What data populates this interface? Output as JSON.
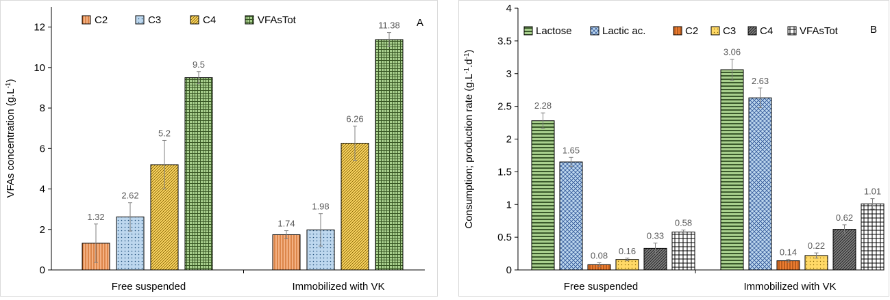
{
  "chart_data": [
    {
      "type": "bar",
      "panel_label": "A",
      "categories": [
        "Free suspended",
        "Immobilized with VK"
      ],
      "ylabel": "VFAs concentration (g.L",
      "ylabel_sup": "-1",
      "ylabel_end": ")",
      "ylim": [
        0,
        13
      ],
      "yticks": [
        "0",
        "2",
        "4",
        "6",
        "8",
        "10",
        "12"
      ],
      "legend_position": "top",
      "series": [
        {
          "name": "C2",
          "values": [
            1.32,
            1.74
          ],
          "labels": [
            "1.32",
            "1.74"
          ],
          "errors": [
            0.95,
            0.2
          ],
          "color": "#f4b183",
          "pattern": "vlines"
        },
        {
          "name": "C3",
          "values": [
            2.62,
            1.98
          ],
          "labels": [
            "2.62",
            "1.98"
          ],
          "errors": [
            0.7,
            0.8
          ],
          "color": "#bdd7ee",
          "pattern": "dots"
        },
        {
          "name": "C4",
          "values": [
            5.2,
            6.26
          ],
          "labels": [
            "5.2",
            "6.26"
          ],
          "errors": [
            1.2,
            0.85
          ],
          "color": "#ffd966",
          "pattern": "diag"
        },
        {
          "name": "VFAsTot",
          "values": [
            9.5,
            11.38
          ],
          "labels": [
            "9.5",
            "11.38"
          ],
          "errors": [
            0.3,
            0.35
          ],
          "color": "#a9d08e",
          "pattern": "grid"
        }
      ]
    },
    {
      "type": "bar",
      "panel_label": "B",
      "categories": [
        "Free suspended",
        "Immobilized with VK"
      ],
      "ylabel": "Consumption; production rate (g.L",
      "ylabel_sup": "-1",
      "ylabel_mid": ".d",
      "ylabel_sup2": "-1",
      "ylabel_end": ")",
      "ylim": [
        0,
        4
      ],
      "yticks": [
        "0",
        "0.5",
        "1",
        "1.5",
        "2",
        "2.5",
        "3",
        "3.5",
        "4"
      ],
      "legend_position": "top",
      "series": [
        {
          "name": "Lactose",
          "values": [
            2.28,
            3.06
          ],
          "labels": [
            "2.28",
            "3.06"
          ],
          "errors": [
            0.12,
            0.16
          ],
          "color": "#a9d08e",
          "pattern": "hlines"
        },
        {
          "name": "Lactic ac.",
          "values": [
            1.65,
            2.63
          ],
          "labels": [
            "1.65",
            "2.63"
          ],
          "errors": [
            0.07,
            0.15
          ],
          "color": "#bdd7ee",
          "pattern": "weave"
        },
        {
          "name": "C2",
          "values": [
            0.08,
            0.14
          ],
          "labels": [
            "0.08",
            "0.14"
          ],
          "errors": [
            0.03,
            0.02
          ],
          "color": "#ed7d31",
          "pattern": "vlines"
        },
        {
          "name": "C3",
          "values": [
            0.16,
            0.22
          ],
          "labels": [
            "0.16",
            "0.22"
          ],
          "errors": [
            0.02,
            0.04
          ],
          "color": "#ffd966",
          "pattern": "dots"
        },
        {
          "name": "C4",
          "values": [
            0.33,
            0.62
          ],
          "labels": [
            "0.33",
            "0.62"
          ],
          "errors": [
            0.08,
            0.07
          ],
          "color": "#7f7f7f",
          "pattern": "diag"
        },
        {
          "name": "VFAsTot",
          "values": [
            0.58,
            1.01
          ],
          "labels": [
            "0.58",
            "1.01"
          ],
          "errors": [
            0.03,
            0.08
          ],
          "color": "#ffffff",
          "pattern": "grid"
        }
      ]
    }
  ]
}
